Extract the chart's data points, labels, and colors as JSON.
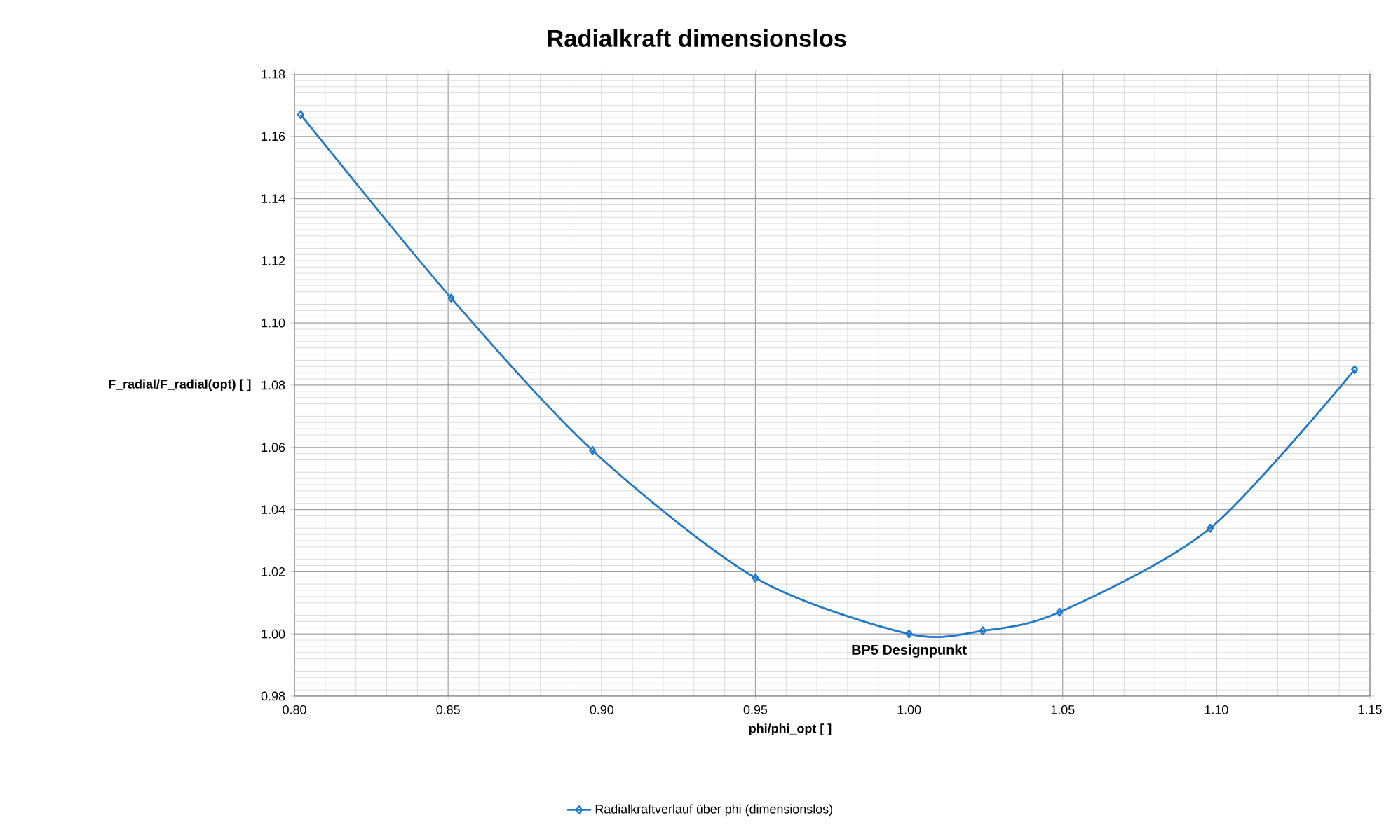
{
  "chart_data": {
    "type": "line",
    "title": "Radialkraft dimensionslos",
    "xlabel": "phi/phi_opt  [ ]",
    "ylabel": "F_radial/F_radial(opt)  [ ]",
    "x": [
      0.802,
      0.851,
      0.897,
      0.95,
      1.0,
      1.024,
      1.049,
      1.098,
      1.145
    ],
    "series": [
      {
        "name": "Radialkraftverlauf über phi (dimensionslos)",
        "color": "#1f78c8",
        "values": [
          1.167,
          1.108,
          1.059,
          1.018,
          1.0,
          1.001,
          1.007,
          1.034,
          1.085
        ]
      }
    ],
    "xlim": [
      0.8,
      1.15
    ],
    "xticks": [
      {
        "value": 0.8,
        "label": "0.80"
      },
      0.85,
      {
        "value": 0.9,
        "label": "0.90"
      },
      0.95,
      {
        "value": 1.0,
        "label": "1.00"
      },
      1.05,
      {
        "value": 1.1,
        "label": "1.10"
      },
      1.15
    ],
    "ylim": [
      0.98,
      1.18
    ],
    "yticks": [
      0.98,
      {
        "value": 1.0,
        "label": "1.00"
      },
      1.02,
      1.04,
      1.06,
      1.08,
      {
        "value": 1.1,
        "label": "1.10"
      },
      1.12,
      1.14,
      1.16,
      1.18
    ],
    "grid": true,
    "legend": "bottom",
    "marker": "diamond",
    "line_style": "solid",
    "annotations": [
      {
        "text": "BP5 Designpunkt",
        "x": 1.0,
        "y": 1.0
      }
    ]
  }
}
